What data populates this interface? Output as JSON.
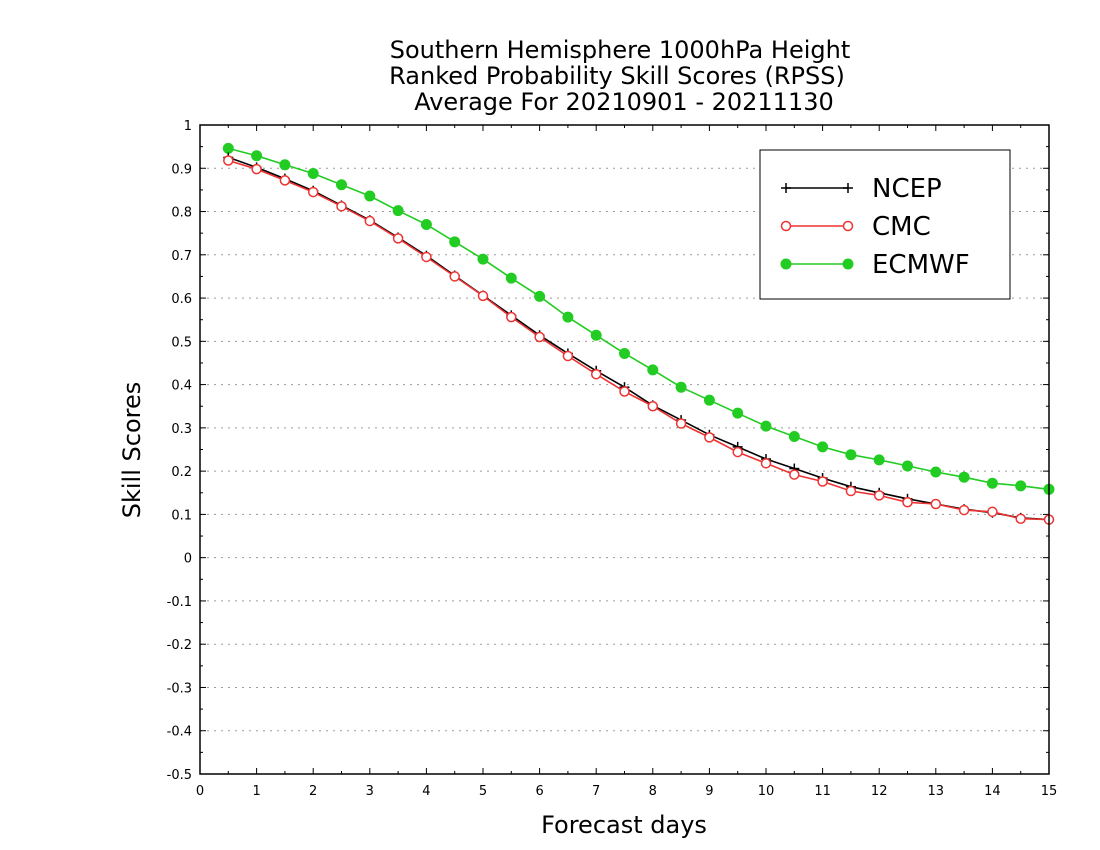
{
  "chart_data": {
    "type": "line",
    "title_lines": [
      "Southern Hemisphere 1000hPa Height",
      "Ranked Probability Skill Scores (RPSS)",
      "Average For 20210901 - 20211130"
    ],
    "xlabel": "Forecast days",
    "ylabel": "Skill Scores",
    "xlim": [
      0,
      15
    ],
    "ylim": [
      -0.5,
      1
    ],
    "xticks": [
      0,
      1,
      2,
      3,
      4,
      5,
      6,
      7,
      8,
      9,
      10,
      11,
      12,
      13,
      14,
      15
    ],
    "yticks": [
      -0.5,
      -0.4,
      -0.3,
      -0.2,
      -0.1,
      0,
      0.1,
      0.2,
      0.3,
      0.4,
      0.5,
      0.6,
      0.7,
      0.8,
      0.9,
      1
    ],
    "ytick_labels": [
      "-0.5",
      "-0.4",
      "-0.3",
      "-0.2",
      "-0.1",
      "0",
      "0.1",
      "0.2",
      "0.3",
      "0.4",
      "0.5",
      "0.6",
      "0.7",
      "0.8",
      "0.9",
      "1"
    ],
    "grid": "horizontal dotted",
    "legend_position": "top-right",
    "x": [
      0.5,
      1,
      1.5,
      2,
      2.5,
      3,
      3.5,
      4,
      4.5,
      5,
      5.5,
      6,
      6.5,
      7,
      7.5,
      8,
      8.5,
      9,
      9.5,
      10,
      10.5,
      11,
      11.5,
      12,
      12.5,
      13,
      13.5,
      14,
      14.5,
      15
    ],
    "series": [
      {
        "name": "NCEP",
        "color": "#000000",
        "marker": "plus",
        "values": [
          0.925,
          0.902,
          0.876,
          0.848,
          0.814,
          0.78,
          0.74,
          0.698,
          0.652,
          0.606,
          0.56,
          0.514,
          0.472,
          0.432,
          0.394,
          0.352,
          0.318,
          0.284,
          0.256,
          0.228,
          0.206,
          0.184,
          0.164,
          0.15,
          0.136,
          0.124,
          0.112,
          0.104,
          0.092,
          0.088
        ]
      },
      {
        "name": "CMC",
        "color": "#ee3333",
        "marker": "open-circle",
        "values": [
          0.918,
          0.898,
          0.872,
          0.845,
          0.812,
          0.778,
          0.738,
          0.695,
          0.65,
          0.605,
          0.556,
          0.51,
          0.466,
          0.424,
          0.384,
          0.35,
          0.31,
          0.278,
          0.244,
          0.218,
          0.192,
          0.176,
          0.154,
          0.144,
          0.128,
          0.124,
          0.11,
          0.106,
          0.09,
          0.088
        ]
      },
      {
        "name": "ECMWF",
        "color": "#22cc22",
        "marker": "filled-circle",
        "values": [
          0.946,
          0.929,
          0.908,
          0.888,
          0.862,
          0.836,
          0.802,
          0.77,
          0.73,
          0.69,
          0.646,
          0.604,
          0.556,
          0.514,
          0.472,
          0.434,
          0.394,
          0.364,
          0.334,
          0.304,
          0.28,
          0.256,
          0.238,
          0.226,
          0.212,
          0.198,
          0.186,
          0.172,
          0.166,
          0.158
        ]
      }
    ]
  }
}
